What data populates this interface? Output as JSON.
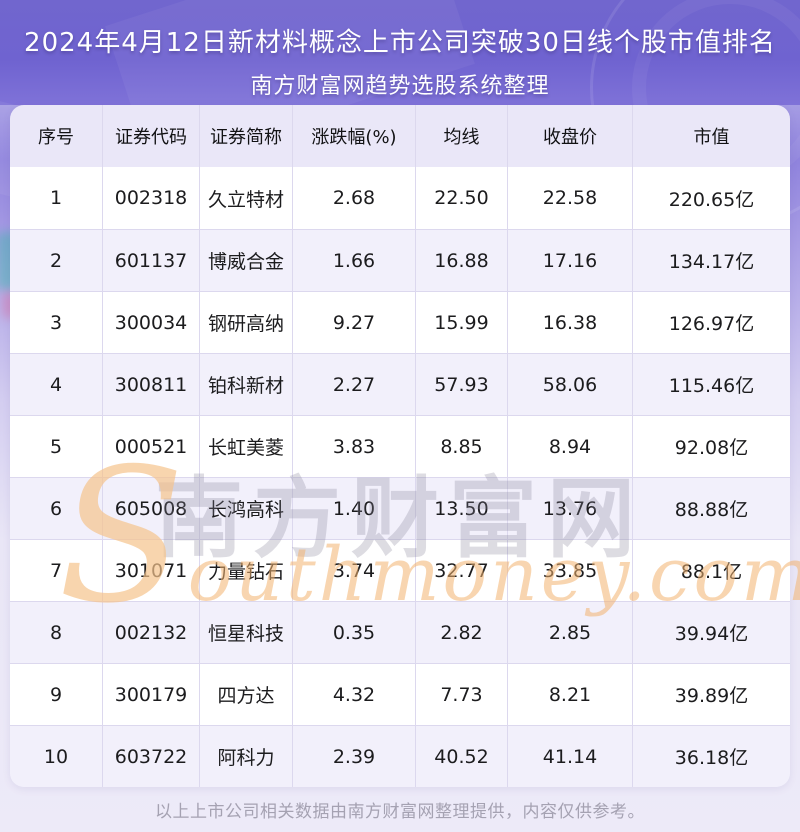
{
  "header": {
    "title_line1": "2024年4月12日新材料概念上市公司突破30日线个股市值排名",
    "title_line2": "南方财富网趋势选股系统整理"
  },
  "table": {
    "columns": [
      "序号",
      "证券代码",
      "证券简称",
      "涨跌幅(%)",
      "均线",
      "收盘价",
      "市值"
    ],
    "rows": [
      [
        "1",
        "002318",
        "久立特材",
        "2.68",
        "22.50",
        "22.58",
        "220.65亿"
      ],
      [
        "2",
        "601137",
        "博威合金",
        "1.66",
        "16.88",
        "17.16",
        "134.17亿"
      ],
      [
        "3",
        "300034",
        "钢研高纳",
        "9.27",
        "15.99",
        "16.38",
        "126.97亿"
      ],
      [
        "4",
        "300811",
        "铂科新材",
        "2.27",
        "57.93",
        "58.06",
        "115.46亿"
      ],
      [
        "5",
        "000521",
        "长虹美菱",
        "3.83",
        "8.85",
        "8.94",
        "92.08亿"
      ],
      [
        "6",
        "605008",
        "长鸿高科",
        "1.40",
        "13.50",
        "13.76",
        "88.88亿"
      ],
      [
        "7",
        "301071",
        "力量钻石",
        "3.74",
        "32.77",
        "33.85",
        "88.1亿"
      ],
      [
        "8",
        "002132",
        "恒星科技",
        "0.35",
        "2.82",
        "2.85",
        "39.94亿"
      ],
      [
        "9",
        "300179",
        "四方达",
        "4.32",
        "7.73",
        "8.21",
        "39.89亿"
      ],
      [
        "10",
        "603722",
        "阿科力",
        "2.39",
        "40.52",
        "41.14",
        "36.18亿"
      ]
    ]
  },
  "chart_data": {
    "type": "table",
    "title": "2024年4月12日新材料概念上市公司突破30日线个股市值排名",
    "subtitle": "南方财富网趋势选股系统整理",
    "columns": [
      "序号",
      "证券代码",
      "证券简称",
      "涨跌幅(%)",
      "均线",
      "收盘价",
      "市值(亿)"
    ],
    "rows": [
      {
        "序号": 1,
        "证券代码": "002318",
        "证券简称": "久立特材",
        "涨跌幅(%)": 2.68,
        "均线": 22.5,
        "收盘价": 22.58,
        "市值(亿)": 220.65
      },
      {
        "序号": 2,
        "证券代码": "601137",
        "证券简称": "博威合金",
        "涨跌幅(%)": 1.66,
        "均线": 16.88,
        "收盘价": 17.16,
        "市值(亿)": 134.17
      },
      {
        "序号": 3,
        "证券代码": "300034",
        "证券简称": "钢研高纳",
        "涨跌幅(%)": 9.27,
        "均线": 15.99,
        "收盘价": 16.38,
        "市值(亿)": 126.97
      },
      {
        "序号": 4,
        "证券代码": "300811",
        "证券简称": "铂科新材",
        "涨跌幅(%)": 2.27,
        "均线": 57.93,
        "收盘价": 58.06,
        "市值(亿)": 115.46
      },
      {
        "序号": 5,
        "证券代码": "000521",
        "证券简称": "长虹美菱",
        "涨跌幅(%)": 3.83,
        "均线": 8.85,
        "收盘价": 8.94,
        "市值(亿)": 92.08
      },
      {
        "序号": 6,
        "证券代码": "605008",
        "证券简称": "长鸿高科",
        "涨跌幅(%)": 1.4,
        "均线": 13.5,
        "收盘价": 13.76,
        "市值(亿)": 88.88
      },
      {
        "序号": 7,
        "证券代码": "301071",
        "证券简称": "力量钻石",
        "涨跌幅(%)": 3.74,
        "均线": 32.77,
        "收盘价": 33.85,
        "市值(亿)": 88.1
      },
      {
        "序号": 8,
        "证券代码": "002132",
        "证券简称": "恒星科技",
        "涨跌幅(%)": 0.35,
        "均线": 2.82,
        "收盘价": 2.85,
        "市值(亿)": 39.94
      },
      {
        "序号": 9,
        "证券代码": "300179",
        "证券简称": "四方达",
        "涨跌幅(%)": 4.32,
        "均线": 7.73,
        "收盘价": 8.21,
        "市值(亿)": 39.89
      },
      {
        "序号": 10,
        "证券代码": "603722",
        "证券简称": "阿科力",
        "涨跌幅(%)": 2.39,
        "均线": 40.52,
        "收盘价": 41.14,
        "市值(亿)": 36.18
      }
    ]
  },
  "watermark": {
    "cn": "南方财富网",
    "en": "Southmoney.com"
  },
  "footer": {
    "note": "以上上市公司相关数据由南方财富网整理提供，内容仅供参考。"
  },
  "colors": {
    "header_purple": "#6f63d0",
    "table_header_bg": "#eae7f8",
    "row_alt_bg": "#f2f0fb",
    "grid_line": "#dcd8ee",
    "footer_text": "#a5a2b2",
    "watermark_orange": "#f3b270",
    "title_text": "#ffffff"
  }
}
